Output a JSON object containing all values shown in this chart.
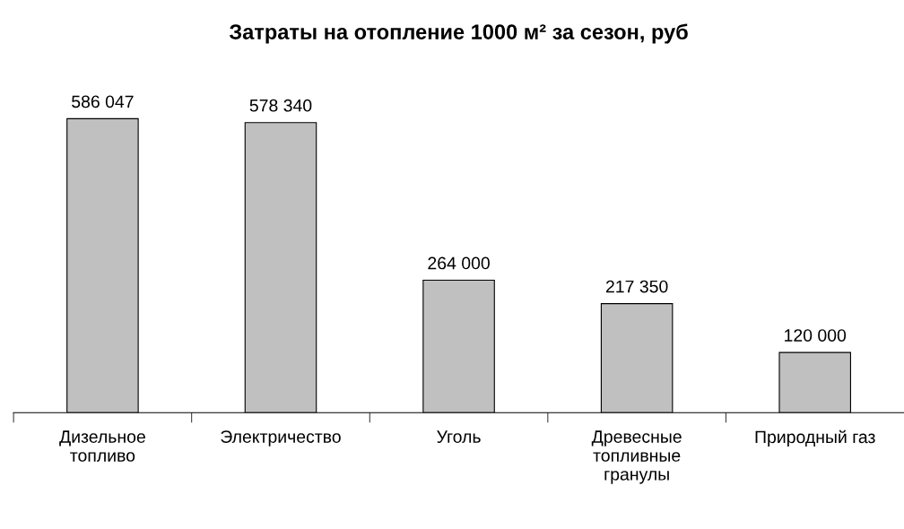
{
  "chart_data": {
    "type": "bar",
    "title": "Затраты на отопление 1000 м² за сезон, руб",
    "categories": [
      "Дизельное\nтопливо",
      "Электричество",
      "Уголь",
      "Древесные\nтопливные\nгранулы",
      "Природный газ"
    ],
    "values": [
      586047,
      578340,
      264000,
      217350,
      120000
    ],
    "value_labels": [
      "586 047",
      "578 340",
      "264 000",
      "217 350",
      "120 000"
    ],
    "color": "#c0c0c0",
    "grid": false,
    "legend": false
  }
}
